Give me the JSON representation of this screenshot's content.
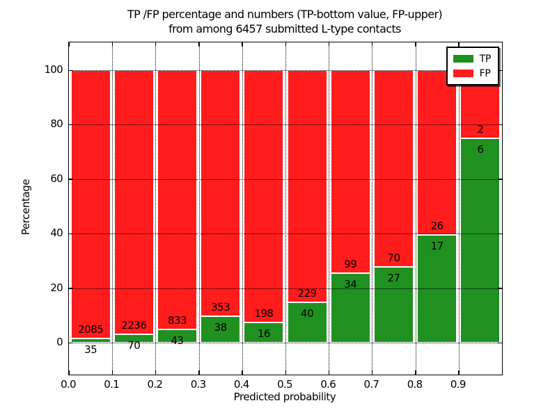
{
  "title": {
    "line1": "TP /FP percentage and numbers (TP-bottom value, FP-upper)",
    "line2": "from among 6457 submitted L-type contacts"
  },
  "axes": {
    "xlabel": "Predicted probability",
    "ylabel": "Percentage",
    "x_tick_labels": [
      "0.0",
      "0.1",
      "0.2",
      "0.3",
      "0.4",
      "0.5",
      "0.6",
      "0.7",
      "0.8",
      "0.9"
    ],
    "y_tick_labels": [
      "0",
      "20",
      "40",
      "60",
      "80",
      "100"
    ],
    "y_tick_values": [
      0,
      20,
      40,
      60,
      80,
      100
    ]
  },
  "legend": {
    "entries": [
      {
        "label": "TP",
        "color": "#209020"
      },
      {
        "label": "FP",
        "color": "#FF1C1C"
      }
    ]
  },
  "chart_data": {
    "type": "bar",
    "stacked": true,
    "normalized": "each probability bin scaled to 100%",
    "title": "TP /FP percentage and numbers (TP-bottom value, FP-upper)\nfrom among 6457 submitted L-type contacts",
    "xlabel": "Predicted probability",
    "ylabel": "Percentage",
    "total_contacts": 6457,
    "bins": [
      "0.0-0.1",
      "0.1-0.2",
      "0.2-0.3",
      "0.3-0.4",
      "0.4-0.5",
      "0.5-0.6",
      "0.6-0.7",
      "0.7-0.8",
      "0.8-0.9",
      "0.9-1.0"
    ],
    "bin_width": 0.1,
    "series": [
      {
        "name": "TP",
        "color": "#209020",
        "counts": [
          35,
          70,
          43,
          38,
          16,
          40,
          34,
          27,
          17,
          6
        ]
      },
      {
        "name": "FP",
        "color": "#FF1C1C",
        "counts": [
          2085,
          2236,
          833,
          353,
          198,
          229,
          99,
          70,
          26,
          2
        ]
      }
    ],
    "tp_percent": [
      1.65,
      3.04,
      4.91,
      9.72,
      7.48,
      14.87,
      25.56,
      27.84,
      39.53,
      75.0
    ],
    "xlim": [
      0.0,
      1.0
    ],
    "ylim": [
      -11.7,
      110.3
    ],
    "y_ticks": [
      0,
      20,
      40,
      60,
      80,
      100
    ],
    "grid": "dotted, both axes, drawn over bars",
    "legend_position": "upper right"
  }
}
